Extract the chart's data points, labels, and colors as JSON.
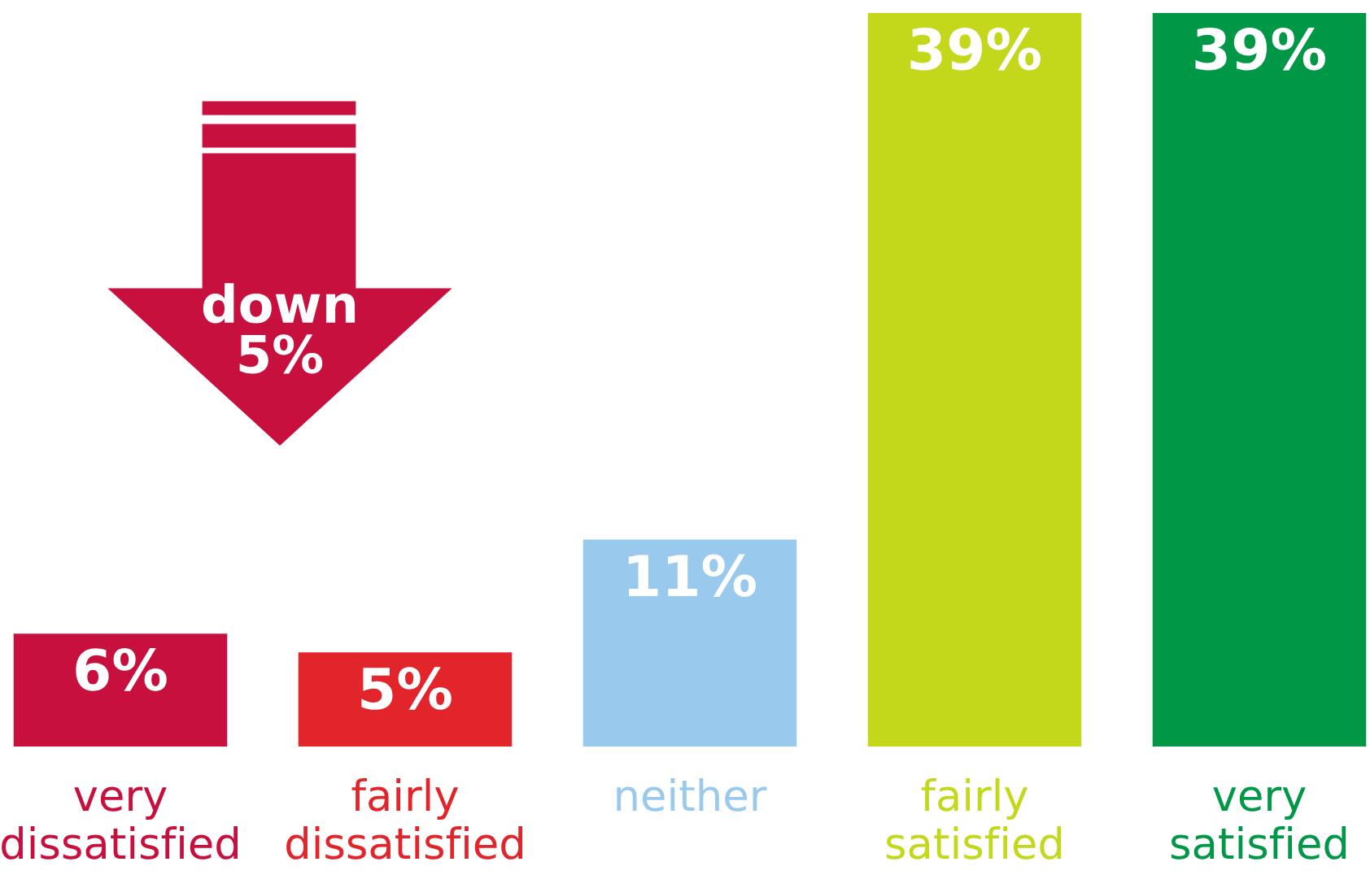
{
  "chart_data": {
    "type": "bar",
    "categories": [
      "very\ndissatisfied",
      "fairly\ndissatisfied",
      "neither",
      "fairly\nsatisfied",
      "very\nsatisfied"
    ],
    "values": [
      6,
      5,
      11,
      39,
      39
    ],
    "colors": [
      "#c8103e",
      "#e2242b",
      "#99c9ec",
      "#c4d81b",
      "#009847"
    ],
    "value_labels": [
      "6%",
      "5%",
      "11%",
      "39%",
      "39%"
    ],
    "annotations": [
      "down\n5%"
    ],
    "grid": false,
    "legend": false
  }
}
